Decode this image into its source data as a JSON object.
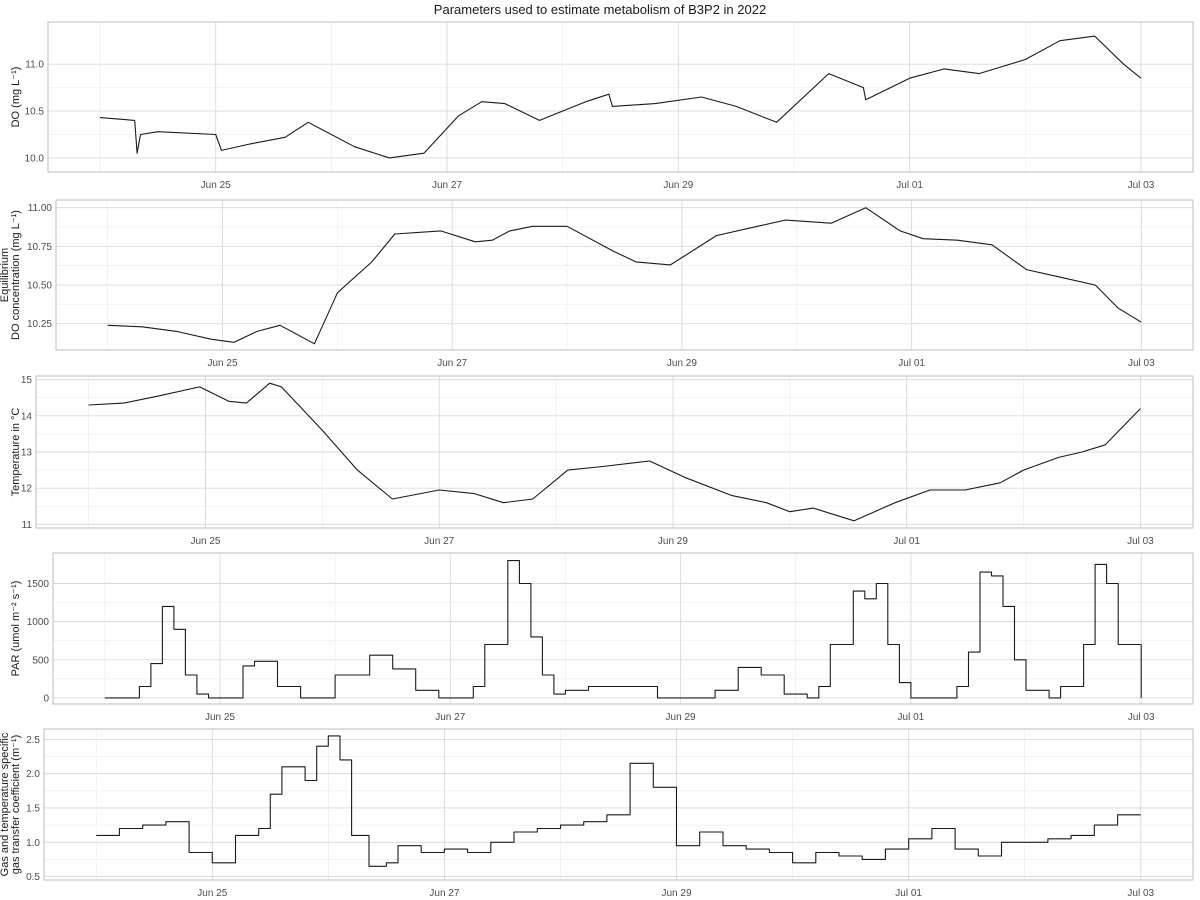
{
  "chart_data": {
    "title": "Parameters used to estimate metabolism of B3P2 in 2022",
    "x_ticks": [
      "Jun 25",
      "Jun 27",
      "Jun 29",
      "Jul 01",
      "Jul 03"
    ],
    "x_tick_values": [
      25,
      27,
      29,
      31,
      33
    ],
    "panels": [
      {
        "type": "line",
        "ylabel_lines": [
          "DO (mg L⁻¹)"
        ],
        "yticks": [
          10.0,
          10.5,
          11.0
        ],
        "ytick_labels": [
          "10.0",
          "10.5",
          "11.0"
        ],
        "ylim": [
          9.85,
          11.45
        ],
        "grid": true,
        "x": [
          24.0,
          24.3,
          24.32,
          24.35,
          24.5,
          25.0,
          25.05,
          25.3,
          25.6,
          25.8,
          26.2,
          26.5,
          26.8,
          27.1,
          27.3,
          27.5,
          27.8,
          28.2,
          28.4,
          28.43,
          28.8,
          29.2,
          29.5,
          29.85,
          30.3,
          30.6,
          30.62,
          31.0,
          31.3,
          31.6,
          32.0,
          32.3,
          32.6,
          32.85,
          33.0
        ],
        "y": [
          10.43,
          10.4,
          10.05,
          10.25,
          10.28,
          10.25,
          10.08,
          10.15,
          10.22,
          10.38,
          10.12,
          10.0,
          10.05,
          10.45,
          10.6,
          10.58,
          10.4,
          10.6,
          10.68,
          10.55,
          10.58,
          10.65,
          10.55,
          10.38,
          10.9,
          10.75,
          10.62,
          10.85,
          10.95,
          10.9,
          11.05,
          11.25,
          11.3,
          11.0,
          10.85
        ]
      },
      {
        "type": "line",
        "ylabel_lines": [
          "Equilibrium",
          "DO concentration (mg L⁻¹)"
        ],
        "yticks": [
          10.25,
          10.5,
          10.75,
          11.0
        ],
        "ytick_labels": [
          "10.25",
          "10.50",
          "10.75",
          "11.00"
        ],
        "ylim": [
          10.08,
          11.05
        ],
        "grid": true,
        "x": [
          24.0,
          24.3,
          24.6,
          24.9,
          25.1,
          25.3,
          25.5,
          25.6,
          25.8,
          26.0,
          26.3,
          26.5,
          26.9,
          27.2,
          27.35,
          27.5,
          27.7,
          28.0,
          28.4,
          28.6,
          28.9,
          29.3,
          29.6,
          29.9,
          30.3,
          30.6,
          30.9,
          31.1,
          31.4,
          31.7,
          32.0,
          32.3,
          32.6,
          32.8,
          33.0
        ],
        "y": [
          10.24,
          10.23,
          10.2,
          10.15,
          10.13,
          10.2,
          10.24,
          10.2,
          10.12,
          10.45,
          10.65,
          10.83,
          10.85,
          10.78,
          10.79,
          10.85,
          10.88,
          10.88,
          10.72,
          10.65,
          10.63,
          10.82,
          10.87,
          10.92,
          10.9,
          11.0,
          10.85,
          10.8,
          10.79,
          10.76,
          10.6,
          10.55,
          10.5,
          10.35,
          10.26
        ]
      },
      {
        "type": "line",
        "ylabel_lines": [
          "Temperature in °C"
        ],
        "yticks": [
          11,
          12,
          13,
          14,
          15
        ],
        "ytick_labels": [
          "11",
          "12",
          "13",
          "14",
          "15"
        ],
        "ylim": [
          10.9,
          15.1
        ],
        "grid": true,
        "x": [
          24.0,
          24.3,
          24.6,
          24.95,
          25.2,
          25.35,
          25.55,
          25.65,
          26.0,
          26.3,
          26.6,
          27.0,
          27.3,
          27.55,
          27.8,
          28.1,
          28.4,
          28.8,
          29.1,
          29.5,
          29.8,
          30.0,
          30.2,
          30.55,
          30.9,
          31.2,
          31.5,
          31.8,
          32.0,
          32.3,
          32.5,
          32.7,
          33.0
        ],
        "y": [
          14.3,
          14.35,
          14.55,
          14.8,
          14.4,
          14.35,
          14.9,
          14.8,
          13.6,
          12.5,
          11.7,
          11.95,
          11.85,
          11.6,
          11.7,
          12.5,
          12.6,
          12.75,
          12.3,
          11.8,
          11.6,
          11.35,
          11.45,
          11.1,
          11.6,
          11.95,
          11.95,
          12.15,
          12.5,
          12.85,
          13.0,
          13.2,
          14.2
        ]
      },
      {
        "type": "line",
        "step": true,
        "ylabel_lines": [
          "PAR (umol m⁻² s⁻¹)"
        ],
        "yticks": [
          0,
          500,
          1000,
          1500
        ],
        "ytick_labels": [
          "0",
          "500",
          "1000",
          "1500"
        ],
        "ylim": [
          -80,
          1900
        ],
        "grid": true,
        "x": [
          24.0,
          24.3,
          24.4,
          24.5,
          24.6,
          24.7,
          24.8,
          24.9,
          25.0,
          25.2,
          25.3,
          25.5,
          25.7,
          25.8,
          26.0,
          26.3,
          26.5,
          26.7,
          26.9,
          27.0,
          27.2,
          27.3,
          27.5,
          27.6,
          27.7,
          27.8,
          27.9,
          28.0,
          28.2,
          28.5,
          28.8,
          29.0,
          29.3,
          29.5,
          29.7,
          29.9,
          30.1,
          30.2,
          30.3,
          30.5,
          30.6,
          30.7,
          30.8,
          30.9,
          31.0,
          31.3,
          31.4,
          31.5,
          31.6,
          31.7,
          31.8,
          31.9,
          32.0,
          32.2,
          32.3,
          32.5,
          32.6,
          32.7,
          32.8,
          33.0
        ],
        "y": [
          0,
          150,
          450,
          1200,
          900,
          300,
          50,
          0,
          0,
          420,
          480,
          150,
          0,
          0,
          300,
          560,
          380,
          100,
          0,
          0,
          150,
          700,
          1800,
          1500,
          800,
          300,
          50,
          100,
          150,
          150,
          0,
          0,
          100,
          400,
          300,
          50,
          0,
          150,
          700,
          1400,
          1300,
          1500,
          700,
          200,
          0,
          0,
          150,
          600,
          1650,
          1600,
          1200,
          500,
          100,
          0,
          150,
          700,
          1750,
          1500,
          700,
          0
        ]
      },
      {
        "type": "line",
        "step": true,
        "ylabel_lines": [
          "Gas and temperature specific",
          "gas transfer coefficient (m⁻¹)"
        ],
        "yticks": [
          0.5,
          1.0,
          1.5,
          2.0,
          2.5
        ],
        "ytick_labels": [
          "0.5",
          "1.0",
          "1.5",
          "2.0",
          "2.5"
        ],
        "ylim": [
          0.45,
          2.65
        ],
        "grid": true,
        "x": [
          24.0,
          24.2,
          24.4,
          24.6,
          24.8,
          25.0,
          25.2,
          25.4,
          25.5,
          25.6,
          25.8,
          25.9,
          26.0,
          26.1,
          26.2,
          26.35,
          26.5,
          26.6,
          26.8,
          27.0,
          27.2,
          27.4,
          27.6,
          27.8,
          28.0,
          28.2,
          28.4,
          28.6,
          28.8,
          29.0,
          29.2,
          29.4,
          29.6,
          29.8,
          30.0,
          30.2,
          30.4,
          30.6,
          30.8,
          31.0,
          31.2,
          31.4,
          31.6,
          31.8,
          32.0,
          32.2,
          32.4,
          32.6,
          32.8,
          33.0
        ],
        "y": [
          1.1,
          1.2,
          1.25,
          1.3,
          0.85,
          0.7,
          1.1,
          1.2,
          1.7,
          2.1,
          1.9,
          2.4,
          2.55,
          2.2,
          1.1,
          0.65,
          0.7,
          0.95,
          0.85,
          0.9,
          0.85,
          1.0,
          1.15,
          1.2,
          1.25,
          1.3,
          1.4,
          2.15,
          1.8,
          0.95,
          1.15,
          0.95,
          0.9,
          0.85,
          0.7,
          0.85,
          0.8,
          0.75,
          0.9,
          1.05,
          1.2,
          0.9,
          0.8,
          1.0,
          1.0,
          1.05,
          1.1,
          1.25,
          1.4,
          1.4
        ]
      }
    ]
  }
}
